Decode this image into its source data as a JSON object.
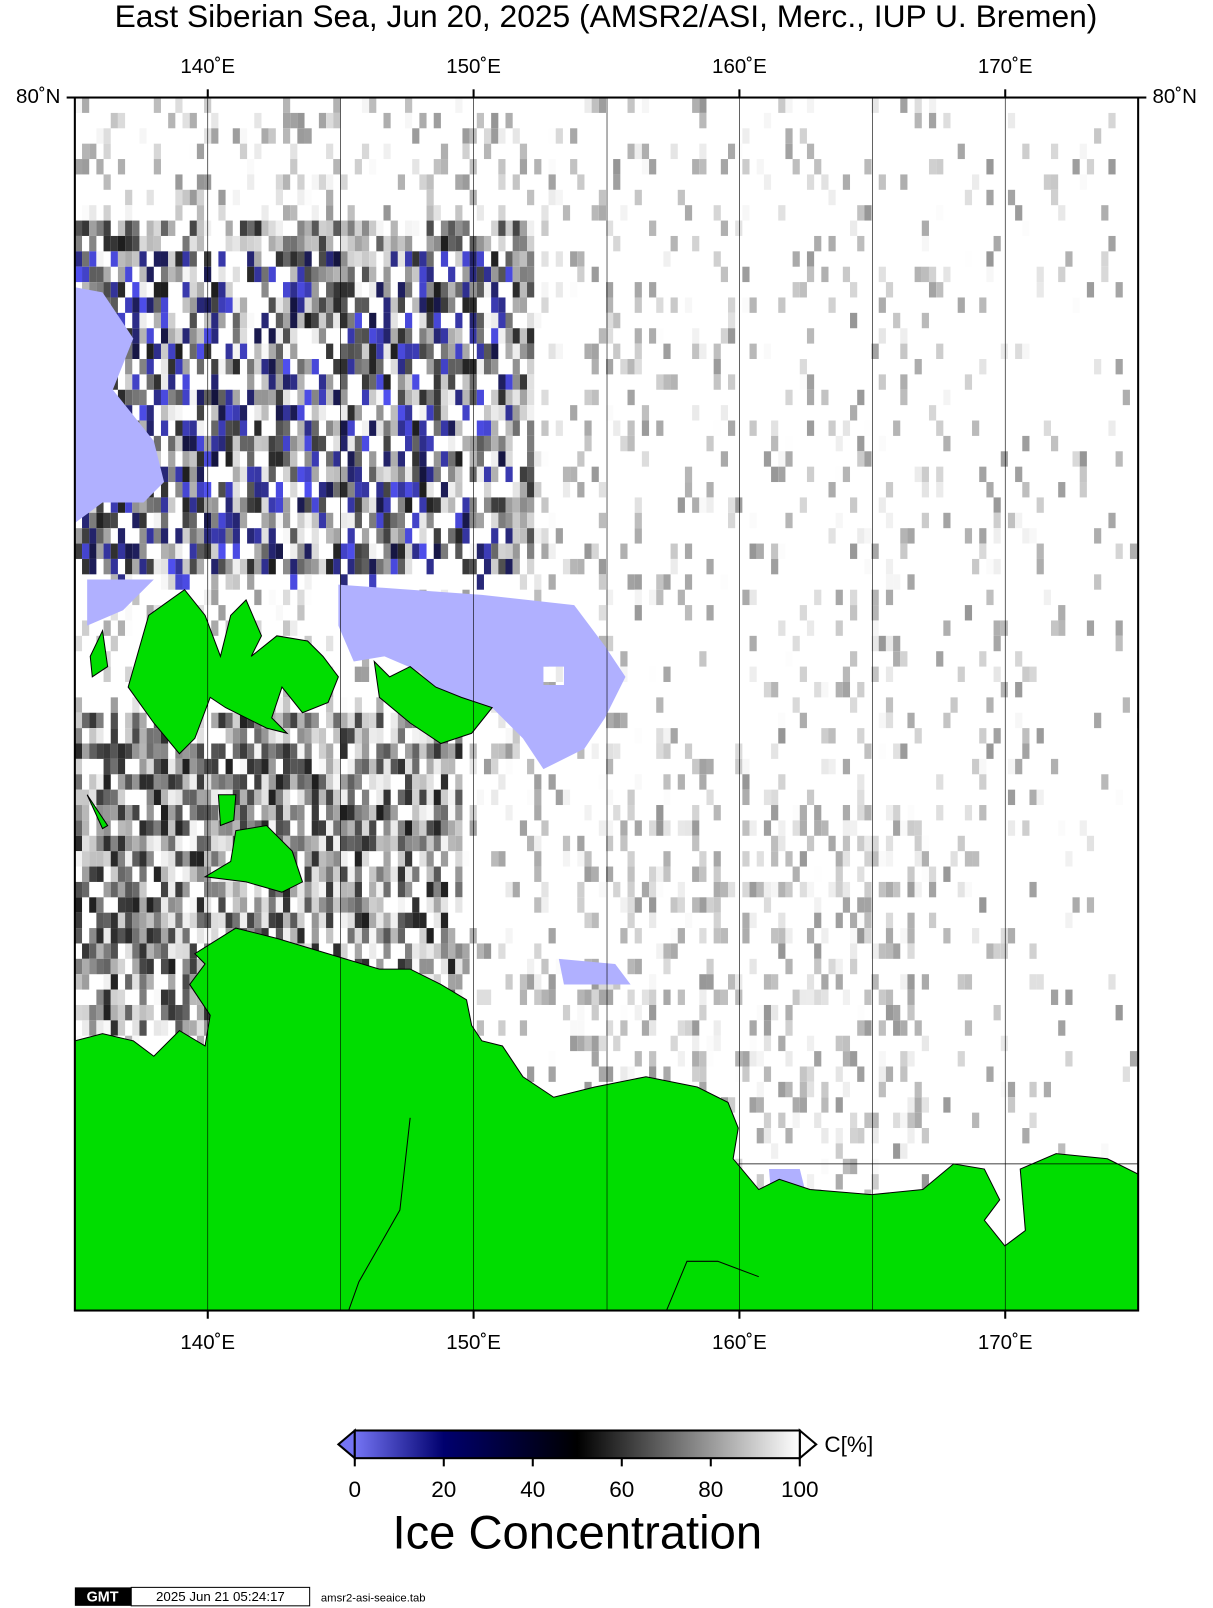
{
  "title": "East Siberian Sea, Jun 20, 2025 (AMSR2/ASI, Merc., IUP U. Bremen)",
  "map": {
    "lon_range": [
      135,
      175
    ],
    "lon_ticks": [
      {
        "value": 140,
        "label": "140˚E"
      },
      {
        "value": 150,
        "label": "150˚E"
      },
      {
        "value": 160,
        "label": "160˚E"
      },
      {
        "value": 170,
        "label": "170˚E"
      }
    ],
    "lat_ticks": [
      {
        "value": 80,
        "label": "80˚N"
      }
    ]
  },
  "colorbar": {
    "range": [
      0,
      100
    ],
    "ticks": [
      0,
      20,
      40,
      60,
      80,
      100
    ],
    "unit": "C[%]",
    "label": "Ice Concentration"
  },
  "footer": {
    "logo": "GMT",
    "timestamp": "2025 Jun 21 05:24:17",
    "filename": "amsr2-asi-seaice.tab"
  }
}
